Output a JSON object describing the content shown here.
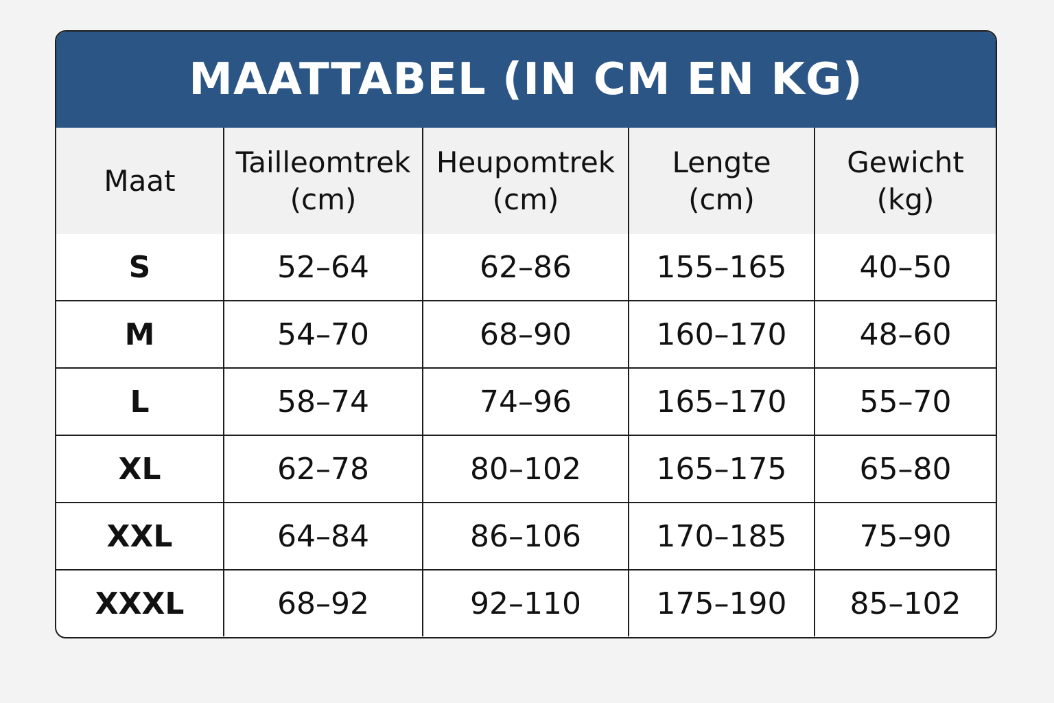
{
  "header": {
    "title": "MAATTABEL (IN CM EN KG)"
  },
  "table": {
    "columns": [
      [
        "Maat"
      ],
      [
        "Tailleomtrek",
        "(cm)"
      ],
      [
        "Heupomtrek",
        "(cm)"
      ],
      [
        "Lengte",
        "(cm)"
      ],
      [
        "Gewicht",
        "(kg)"
      ]
    ],
    "rows": [
      [
        "S",
        "52–64",
        "62–86",
        "155–165",
        "40–50"
      ],
      [
        "M",
        "54–70",
        "68–90",
        "160–170",
        "48–60"
      ],
      [
        "L",
        "58–74",
        "74–96",
        "165–170",
        "55–70"
      ],
      [
        "XL",
        "62–78",
        "80–102",
        "165–175",
        "65–80"
      ],
      [
        "XXL",
        "64–84",
        "86–106",
        "170–185",
        "75–90"
      ],
      [
        "XXXL",
        "68–92",
        "92–110",
        "175–190",
        "85–102"
      ]
    ]
  }
}
